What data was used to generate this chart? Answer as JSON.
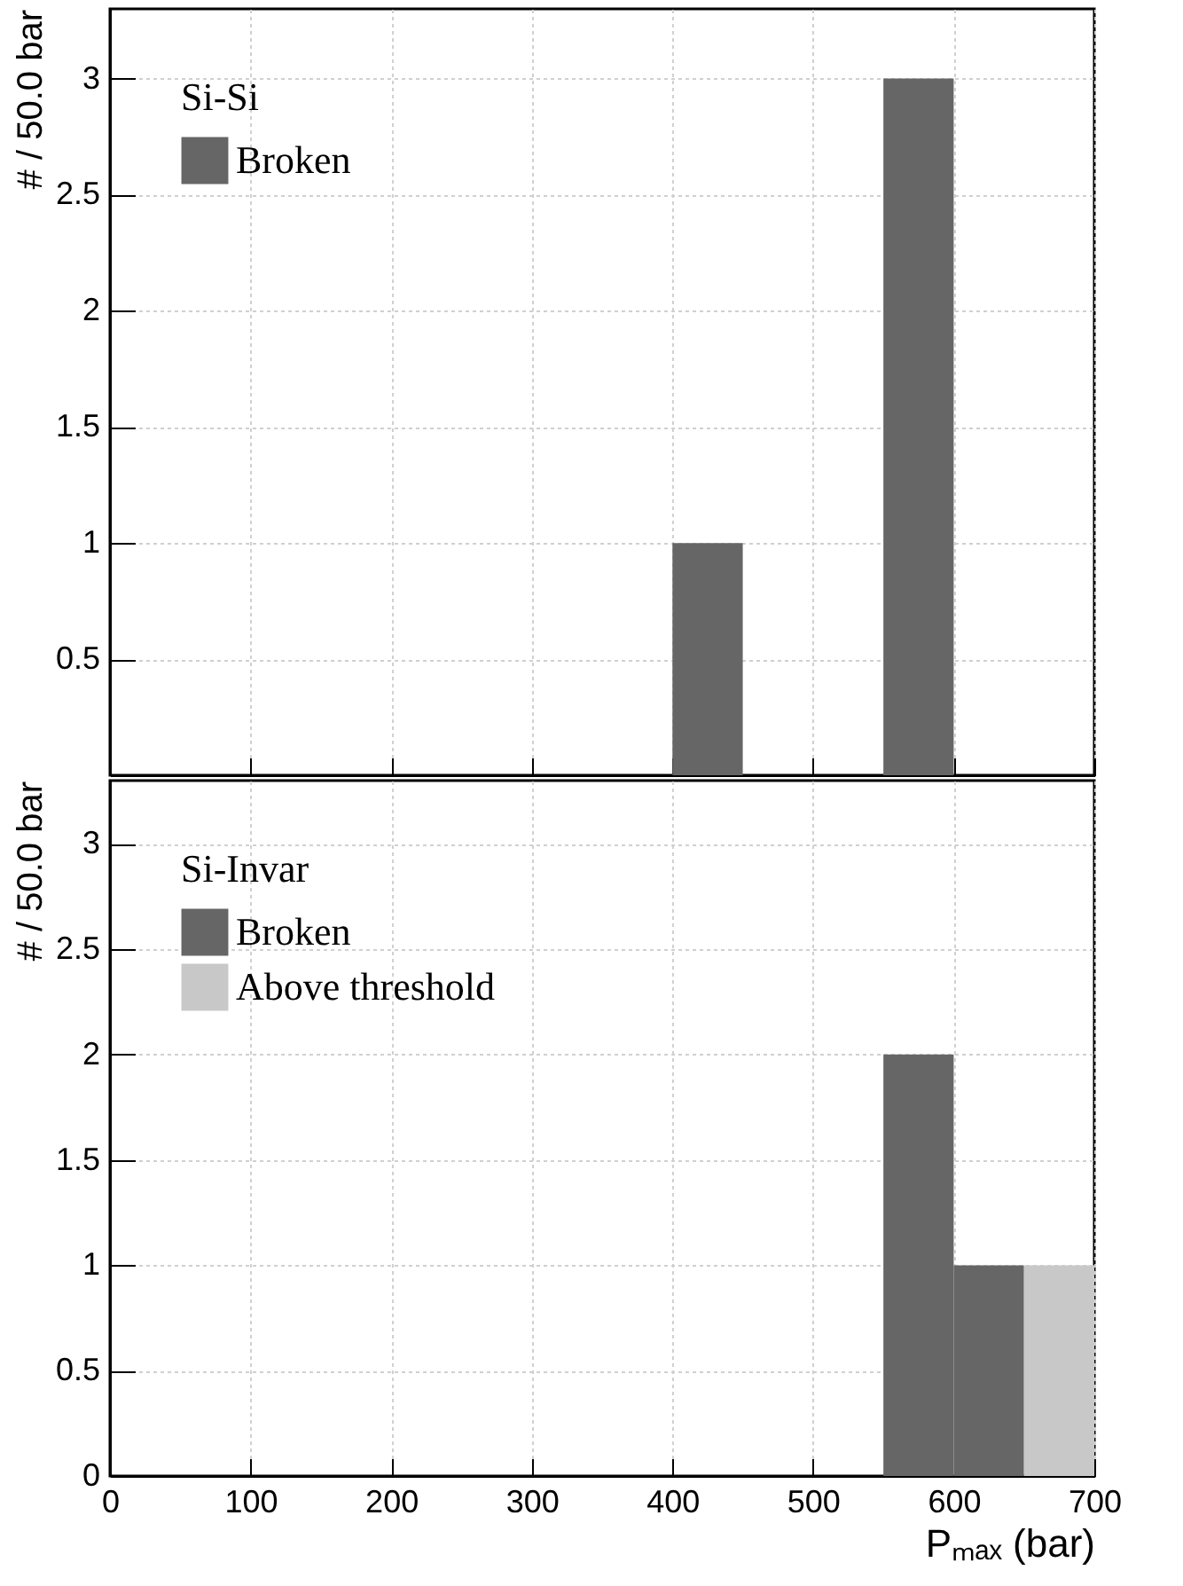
{
  "chart_data": [
    {
      "type": "histogram",
      "ylabel": "# / 50.0 bar",
      "legend_title": "Si-Si",
      "legend": "top left",
      "grid": true,
      "tick_labels": "y",
      "bins": [
        0,
        50,
        100,
        150,
        200,
        250,
        300,
        350,
        400,
        450,
        500,
        550,
        600,
        650,
        700
      ],
      "xlim": [
        0,
        700
      ],
      "xticks": [
        0,
        100,
        200,
        300,
        400,
        500,
        600,
        700
      ],
      "ylim": [
        0,
        3.3
      ],
      "yticks": [
        0.5,
        1,
        1.5,
        2,
        2.5,
        3
      ],
      "series": [
        {
          "name": "Broken",
          "color": "#666666",
          "values": [
            0,
            0,
            0,
            0,
            0,
            0,
            0,
            0,
            1,
            0,
            0,
            3,
            0,
            0
          ]
        }
      ]
    },
    {
      "type": "histogram",
      "xlabel": "Pₘₐₓ (bar)",
      "ylabel": "# / 50.0 bar",
      "legend_title": "Si-Invar",
      "legend": "top left",
      "grid": true,
      "bins": [
        0,
        50,
        100,
        150,
        200,
        250,
        300,
        350,
        400,
        450,
        500,
        550,
        600,
        650,
        700
      ],
      "xlim": [
        0,
        700
      ],
      "xticks": [
        0,
        100,
        200,
        300,
        400,
        500,
        600,
        700
      ],
      "ylim": [
        0,
        3.3
      ],
      "yticks": [
        0,
        0.5,
        1,
        1.5,
        2,
        2.5,
        3
      ],
      "series": [
        {
          "name": "Broken",
          "color": "#666666",
          "values": [
            0,
            0,
            0,
            0,
            0,
            0,
            0,
            0,
            0,
            0,
            0,
            2,
            1,
            0
          ]
        },
        {
          "name": "Above threshold",
          "color": "#c8c8c8",
          "values": [
            0,
            0,
            0,
            0,
            0,
            0,
            0,
            0,
            0,
            0,
            0,
            0,
            0,
            1
          ]
        }
      ]
    }
  ]
}
